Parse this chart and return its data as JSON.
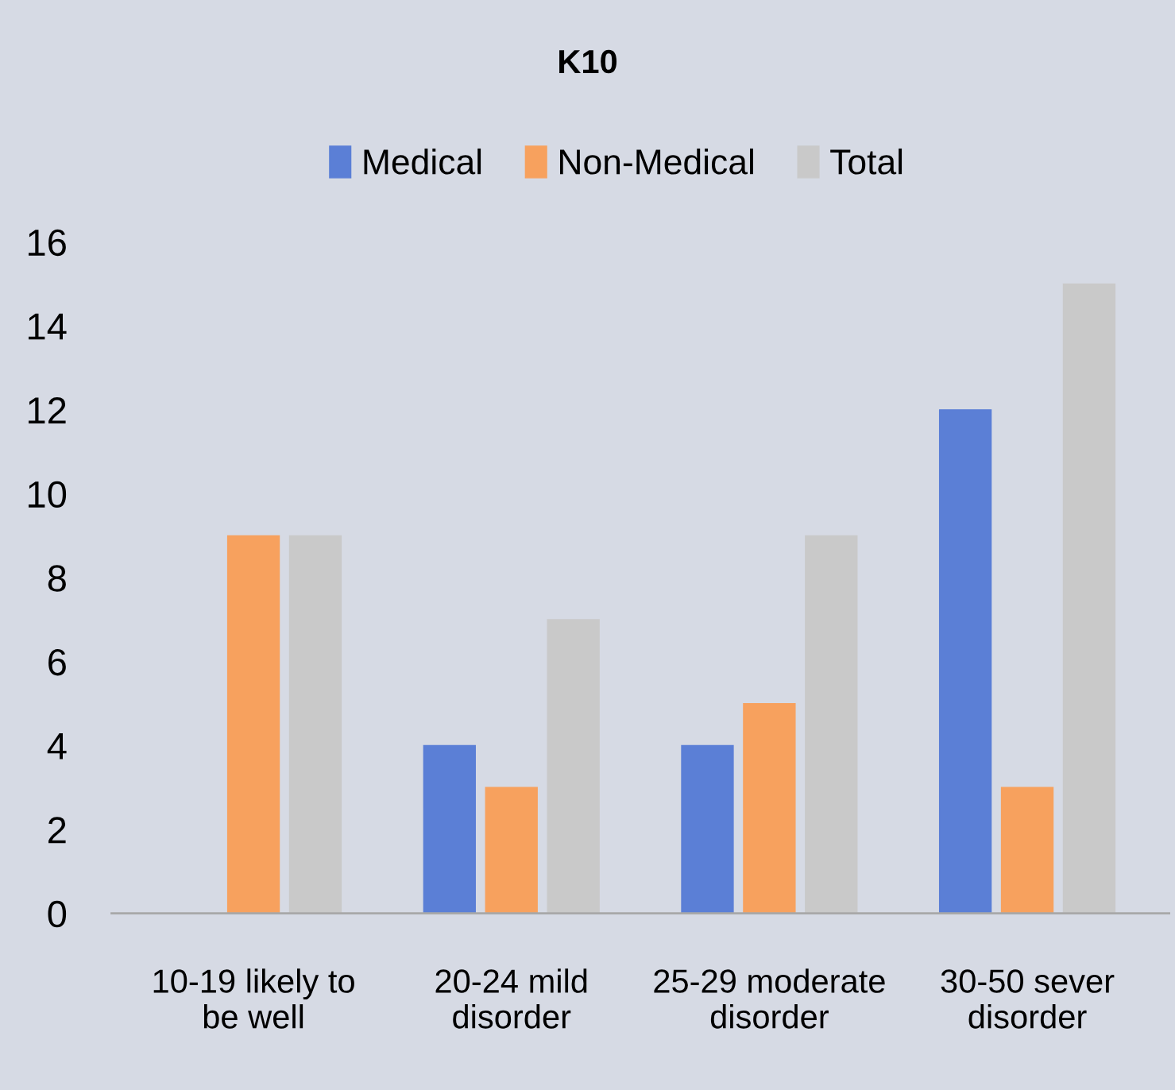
{
  "chart_data": {
    "type": "bar",
    "title": "K10",
    "categories": [
      "10-19 likely to\nbe well",
      "20-24 mild\ndisorder",
      "25-29 moderate\ndisorder",
      "30-50 sever\ndisorder"
    ],
    "series": [
      {
        "name": "Medical",
        "color": "#5b7fd6",
        "values": [
          0,
          4,
          4,
          12
        ]
      },
      {
        "name": "Non-Medical",
        "color": "#f7a15e",
        "values": [
          9,
          3,
          5,
          3
        ]
      },
      {
        "name": "Total",
        "color": "#c9c9c9",
        "values": [
          9,
          7,
          9,
          15
        ]
      }
    ],
    "ylim": [
      0,
      16
    ],
    "yticks": [
      0,
      2,
      4,
      6,
      8,
      10,
      12,
      14,
      16
    ],
    "grid": false,
    "legend": "top"
  }
}
